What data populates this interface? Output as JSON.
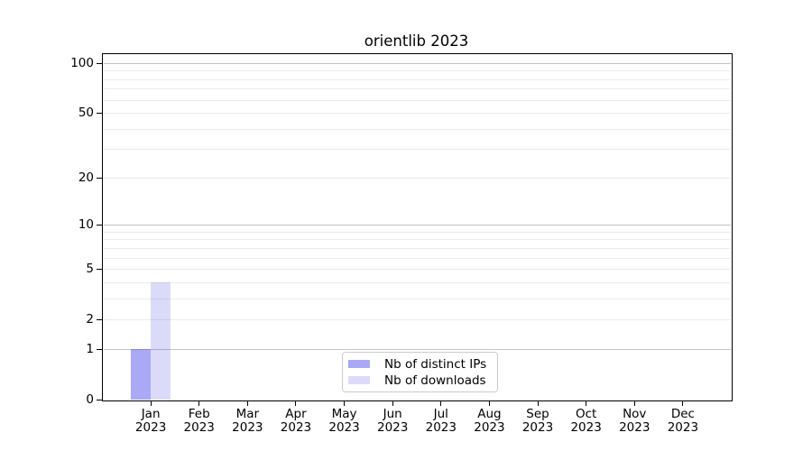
{
  "chart_data": {
    "type": "bar",
    "title": "orientlib 2023",
    "x": {
      "categories": [
        "Jan",
        "Feb",
        "Mar",
        "Apr",
        "May",
        "Jun",
        "Jul",
        "Aug",
        "Sep",
        "Oct",
        "Nov",
        "Dec"
      ],
      "year": "2023"
    },
    "series": [
      {
        "name": "Nb of distinct IPs",
        "color": "rgba(40,40,233,0.4)",
        "color_hex_on_white": "#a9a9f6",
        "values": [
          1,
          0,
          0,
          0,
          0,
          0,
          0,
          0,
          0,
          0,
          0,
          0
        ]
      },
      {
        "name": "Nb of downloads",
        "color": "rgba(75,75,225,0.2)",
        "color_hex_on_white": "#dbdbf9",
        "values": [
          4,
          0,
          0,
          0,
          0,
          0,
          0,
          0,
          0,
          0,
          0,
          0
        ]
      }
    ],
    "y_axis": {
      "scale": "log1p",
      "labeled_ticks": [
        0,
        1,
        2,
        5,
        10,
        20,
        50,
        100
      ],
      "major_gridlines": [
        1,
        10,
        100
      ],
      "minor_gridlines": [
        2,
        3,
        4,
        5,
        6,
        7,
        8,
        9,
        20,
        30,
        40,
        50,
        60,
        70,
        80,
        90
      ],
      "top_value": 115
    },
    "legend": {
      "position": "lower center",
      "entries": [
        "Nb of distinct IPs",
        "Nb of downloads"
      ]
    },
    "grid": "horizontal"
  },
  "colors": {
    "background": "#ffffff",
    "spine": "#000000",
    "text": "#000000",
    "major_grid": "#c3c3c3",
    "minor_grid": "#ebebeb",
    "legend_border": "#cccccc"
  }
}
